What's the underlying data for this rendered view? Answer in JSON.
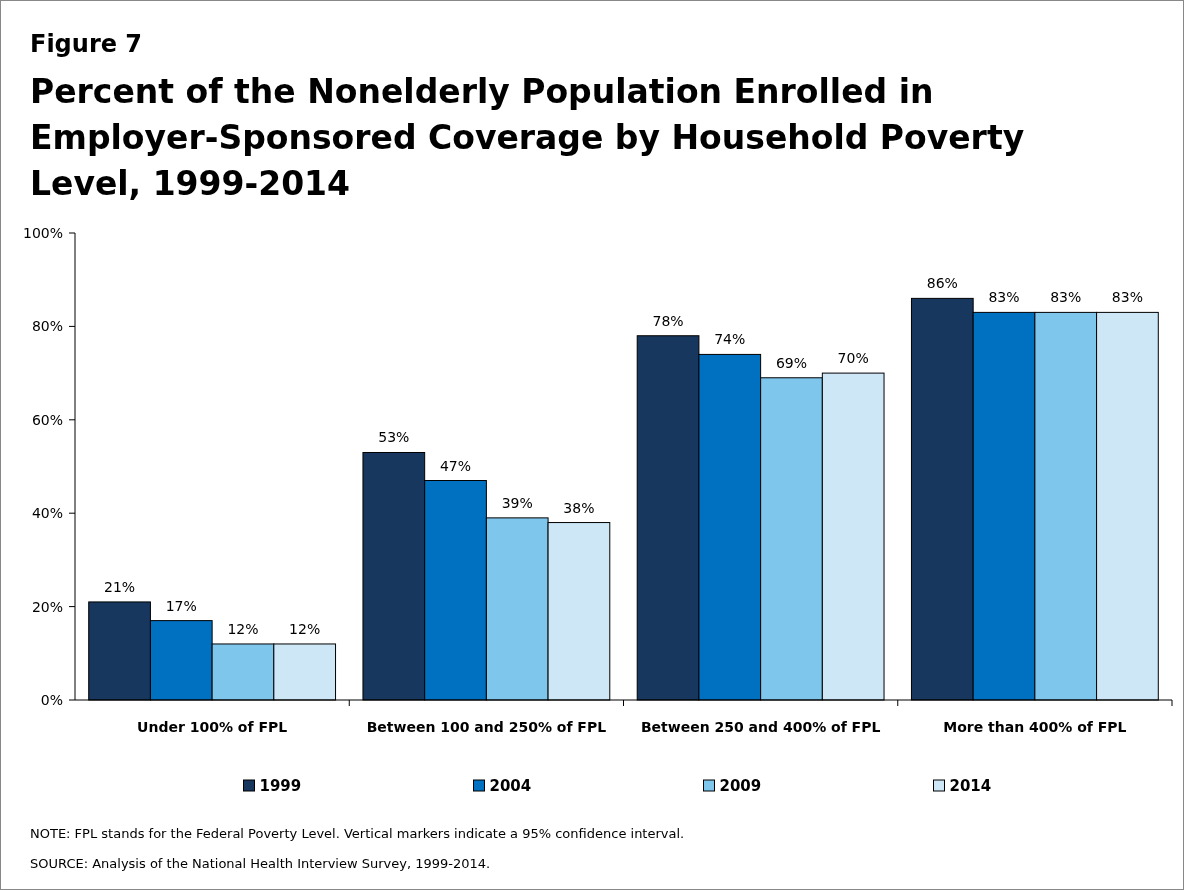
{
  "chart_data": {
    "type": "bar",
    "title": "Figure 7",
    "subtitle": "Percent of the Nonelderly Population Enrolled in Employer-Sponsored Coverage by Household Poverty Level, 1999-2014",
    "categories": [
      "Under 100% of FPL",
      "Between 100 and 250% of FPL",
      "Between 250 and 400% of FPL",
      "More than 400% of FPL"
    ],
    "series": [
      {
        "name": "1999",
        "color": "#17375e",
        "values": [
          21,
          53,
          78,
          86
        ],
        "value_labels": [
          "21%",
          "53%",
          "78%",
          "86%"
        ]
      },
      {
        "name": "2004",
        "color": "#0070c0",
        "values": [
          17,
          47,
          74,
          83
        ],
        "value_labels": [
          "17%",
          "47%",
          "74%",
          "83%"
        ]
      },
      {
        "name": "2009",
        "color": "#7fc6ec",
        "values": [
          12,
          39,
          69,
          83
        ],
        "value_labels": [
          "12%",
          "39%",
          "69%",
          "83%"
        ]
      },
      {
        "name": "2014",
        "color": "#cde7f7",
        "values": [
          12,
          38,
          70,
          83
        ],
        "value_labels": [
          "12%",
          "38%",
          "70%",
          "83%"
        ]
      }
    ],
    "ylim": [
      0,
      100
    ],
    "yticks": [
      {
        "value": 0,
        "label": "0%"
      },
      {
        "value": 20,
        "label": "20%"
      },
      {
        "value": 40,
        "label": "40%"
      },
      {
        "value": 60,
        "label": "60%"
      },
      {
        "value": 80,
        "label": "80%"
      },
      {
        "value": 100,
        "label": "100%"
      }
    ],
    "grid": false,
    "legend": "bottom",
    "annotations": [
      "NOTE: FPL stands for the Federal Poverty Level.  Vertical markers indicate a 95% confidence interval.",
      "SOURCE: Analysis of the National Health Interview Survey, 1999-2014."
    ]
  }
}
